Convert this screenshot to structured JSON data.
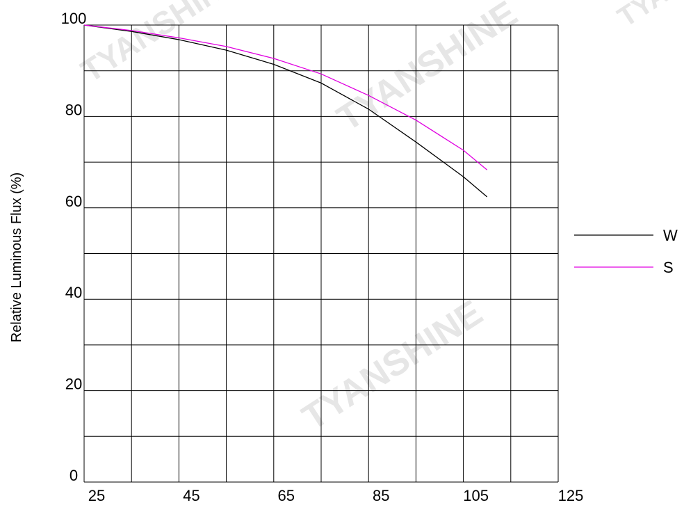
{
  "watermark": "TYANSHINE",
  "chart_data": {
    "type": "line",
    "title": "",
    "xlabel": "",
    "ylabel": "Relative Luminous Flux (%)",
    "xlim": [
      25,
      125
    ],
    "ylim": [
      0,
      100
    ],
    "x_tick_labels": [
      "25",
      "45",
      "65",
      "85",
      "105",
      "125"
    ],
    "y_tick_labels": [
      "0",
      "20",
      "40",
      "60",
      "80",
      "100"
    ],
    "grid": true,
    "legend": "right",
    "series": [
      {
        "name": "W",
        "color": "#000000",
        "x": [
          25,
          35,
          45,
          55,
          65,
          75,
          85,
          95,
          105,
          110
        ],
        "y": [
          100,
          98.6,
          96.8,
          94.5,
          91.4,
          87.3,
          81.6,
          74.4,
          66.8,
          62.4
        ]
      },
      {
        "name": "S",
        "color": "#e000e0",
        "x": [
          25,
          35,
          45,
          55,
          65,
          75,
          85,
          95,
          105,
          110
        ],
        "y": [
          100,
          98.8,
          97.2,
          95.3,
          92.7,
          89.3,
          84.6,
          79.2,
          72.6,
          68.3
        ]
      }
    ]
  }
}
